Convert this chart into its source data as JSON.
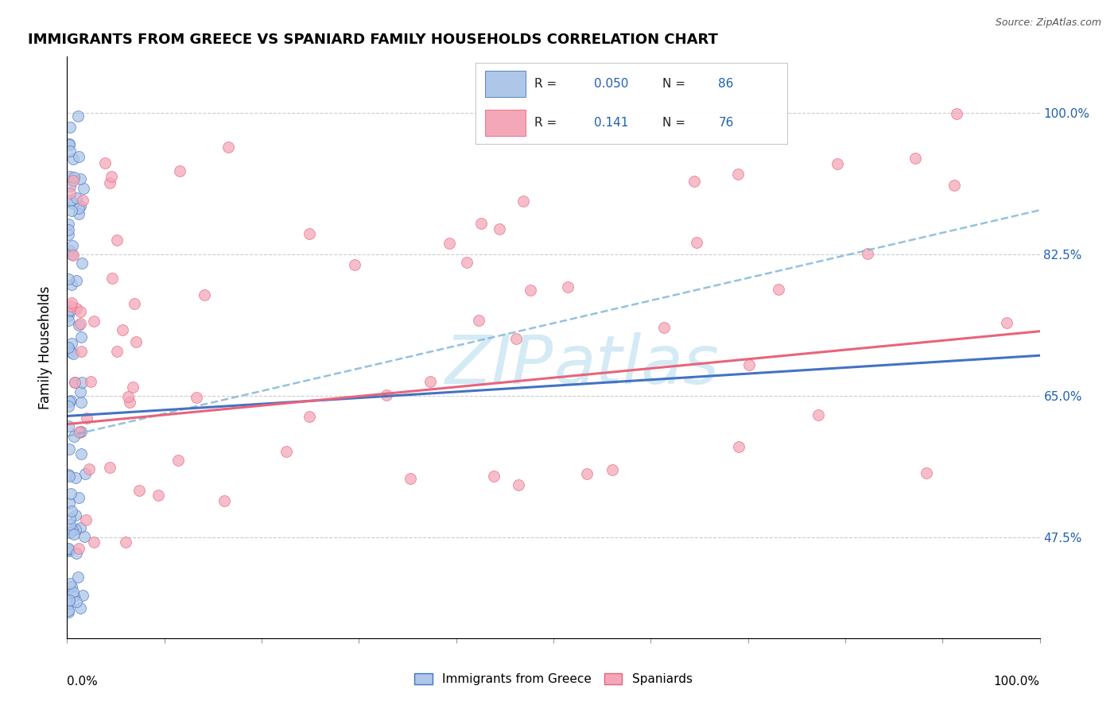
{
  "title": "IMMIGRANTS FROM GREECE VS SPANIARD FAMILY HOUSEHOLDS CORRELATION CHART",
  "source": "Source: ZipAtlas.com",
  "ylabel": "Family Households",
  "legend_label1": "Immigrants from Greece",
  "legend_label2": "Spaniards",
  "R1": "0.050",
  "N1": "86",
  "R2": "0.141",
  "N2": "76",
  "color_blue": "#aec6e8",
  "color_pink": "#f4a7b9",
  "trendline_blue": "#4472c4",
  "trendline_pink": "#e8647a",
  "trendline_blue_dashed": "#7ab3d8",
  "watermark_color": "#d4eaf5",
  "background_color": "#ffffff",
  "grid_color": "#cccccc",
  "xlim": [
    0.0,
    1.0
  ],
  "ylim": [
    0.35,
    1.07
  ],
  "ytick_values": [
    0.475,
    0.65,
    0.825,
    1.0
  ],
  "ytick_labels": [
    "47.5%",
    "65.0%",
    "82.5%",
    "100.0%"
  ],
  "blue_trend_x0": 0.0,
  "blue_trend_y0": 0.625,
  "blue_trend_x1": 1.0,
  "blue_trend_y1": 0.7,
  "pink_trend_x0": 0.0,
  "pink_trend_y0": 0.615,
  "pink_trend_x1": 1.0,
  "pink_trend_y1": 0.73,
  "dashed_trend_x0": 0.0,
  "dashed_trend_y0": 0.6,
  "dashed_trend_x1": 1.0,
  "dashed_trend_y1": 0.88
}
